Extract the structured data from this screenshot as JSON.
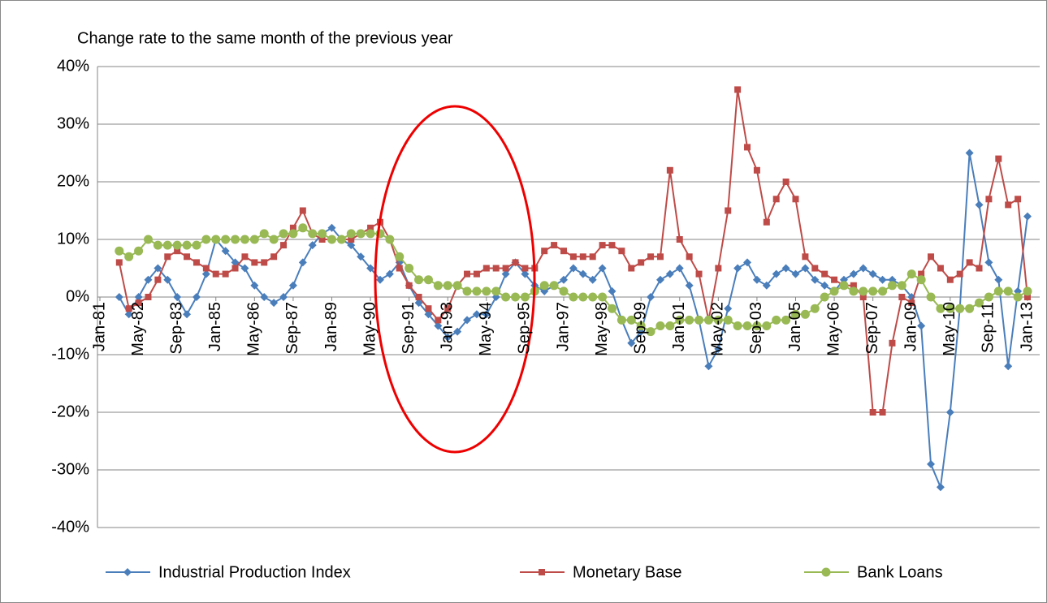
{
  "chart_data": {
    "type": "line",
    "title": "Change rate to the same month of the previous year",
    "categories": [
      "Jan-81",
      null,
      null,
      null,
      "May-82",
      null,
      null,
      null,
      "Sep-83",
      null,
      null,
      null,
      "Jan-85",
      null,
      null,
      null,
      "May-86",
      null,
      null,
      null,
      "Sep-87",
      null,
      null,
      null,
      "Jan-89",
      null,
      null,
      null,
      "May-90",
      null,
      null,
      null,
      "Sep-91",
      null,
      null,
      null,
      "Jan-93",
      null,
      null,
      null,
      "May-94",
      null,
      null,
      null,
      "Sep-95",
      null,
      null,
      null,
      "Jan-97",
      null,
      null,
      null,
      "May-98",
      null,
      null,
      null,
      "Sep-99",
      null,
      null,
      null,
      "Jan-01",
      null,
      null,
      null,
      "May-02",
      null,
      null,
      null,
      "Sep-03",
      null,
      null,
      null,
      "Jan-05",
      null,
      null,
      null,
      "May-06",
      null,
      null,
      null,
      "Sep-07",
      null,
      null,
      null,
      "Jan-09",
      null,
      null,
      null,
      "May-10",
      null,
      null,
      null,
      "Sep-11",
      null,
      null,
      null,
      "Jan-13"
    ],
    "series": [
      {
        "name": "Industrial Production Index",
        "color": "#4a7ebb",
        "marker": "diamond",
        "values": [
          null,
          null,
          0,
          -3,
          0,
          3,
          5,
          3,
          0,
          -3,
          0,
          4,
          10,
          8,
          6,
          5,
          2,
          0,
          -1,
          0,
          2,
          6,
          9,
          11,
          12,
          10,
          9,
          7,
          5,
          3,
          4,
          6,
          2,
          -1,
          -3,
          -5,
          -7,
          -6,
          -4,
          -3,
          -3,
          0,
          4,
          6,
          4,
          2,
          1,
          2,
          3,
          5,
          4,
          3,
          5,
          1,
          -4,
          -8,
          -6,
          0,
          3,
          4,
          5,
          2,
          -4,
          -12,
          -9,
          -2,
          5,
          6,
          3,
          2,
          4,
          5,
          4,
          5,
          3,
          2,
          1,
          3,
          4,
          5,
          4,
          3,
          3,
          2,
          0,
          -5,
          -29,
          -33,
          -20,
          -2,
          25,
          16,
          6,
          3,
          -12,
          1,
          14
        ]
      },
      {
        "name": "Monetary Base",
        "color": "#be4b48",
        "marker": "square",
        "values": [
          null,
          null,
          6,
          -2,
          -1,
          0,
          3,
          7,
          8,
          7,
          6,
          5,
          4,
          4,
          5,
          7,
          6,
          6,
          7,
          9,
          12,
          15,
          11,
          10,
          10,
          10,
          10,
          11,
          12,
          13,
          10,
          5,
          2,
          0,
          -2,
          -4,
          -2,
          2,
          4,
          4,
          5,
          5,
          5,
          6,
          5,
          5,
          8,
          9,
          8,
          7,
          7,
          7,
          9,
          9,
          8,
          5,
          6,
          7,
          7,
          22,
          10,
          7,
          4,
          -4,
          5,
          15,
          36,
          26,
          22,
          13,
          17,
          20,
          17,
          7,
          5,
          4,
          3,
          2,
          2,
          0,
          -20,
          -20,
          -8,
          0,
          -1,
          4,
          7,
          5,
          3,
          4,
          6,
          5,
          17,
          24,
          16,
          17,
          0
        ]
      },
      {
        "name": "Bank Loans",
        "color": "#98b954",
        "marker": "circle",
        "values": [
          null,
          null,
          8,
          7,
          8,
          10,
          9,
          9,
          9,
          9,
          9,
          10,
          10,
          10,
          10,
          10,
          10,
          11,
          10,
          11,
          11,
          12,
          11,
          11,
          10,
          10,
          11,
          11,
          11,
          11,
          10,
          7,
          5,
          3,
          3,
          2,
          2,
          2,
          1,
          1,
          1,
          1,
          0,
          0,
          0,
          1,
          2,
          2,
          1,
          0,
          0,
          0,
          0,
          -2,
          -4,
          -4,
          -5,
          -6,
          -5,
          -5,
          -4,
          -4,
          -4,
          -4,
          -4,
          -4,
          -5,
          -5,
          -5,
          -5,
          -4,
          -4,
          -3,
          -3,
          -2,
          0,
          1,
          2,
          1,
          1,
          1,
          1,
          2,
          2,
          4,
          3,
          0,
          -2,
          -2,
          -2,
          -2,
          -1,
          0,
          1,
          1,
          0,
          1
        ]
      }
    ],
    "ylim": [
      -40,
      40
    ],
    "yticks": [
      {
        "value": -40,
        "label": "-40%"
      },
      {
        "value": -30,
        "label": "-30%"
      },
      {
        "value": -20,
        "label": "-20%"
      },
      {
        "value": -10,
        "label": "-10%"
      },
      {
        "value": 0,
        "label": "0%"
      },
      {
        "value": 10,
        "label": "10%"
      },
      {
        "value": 20,
        "label": "20%"
      },
      {
        "value": 30,
        "label": "30%"
      },
      {
        "value": 40,
        "label": "40%"
      }
    ],
    "grid": true,
    "legend": "bottom"
  }
}
